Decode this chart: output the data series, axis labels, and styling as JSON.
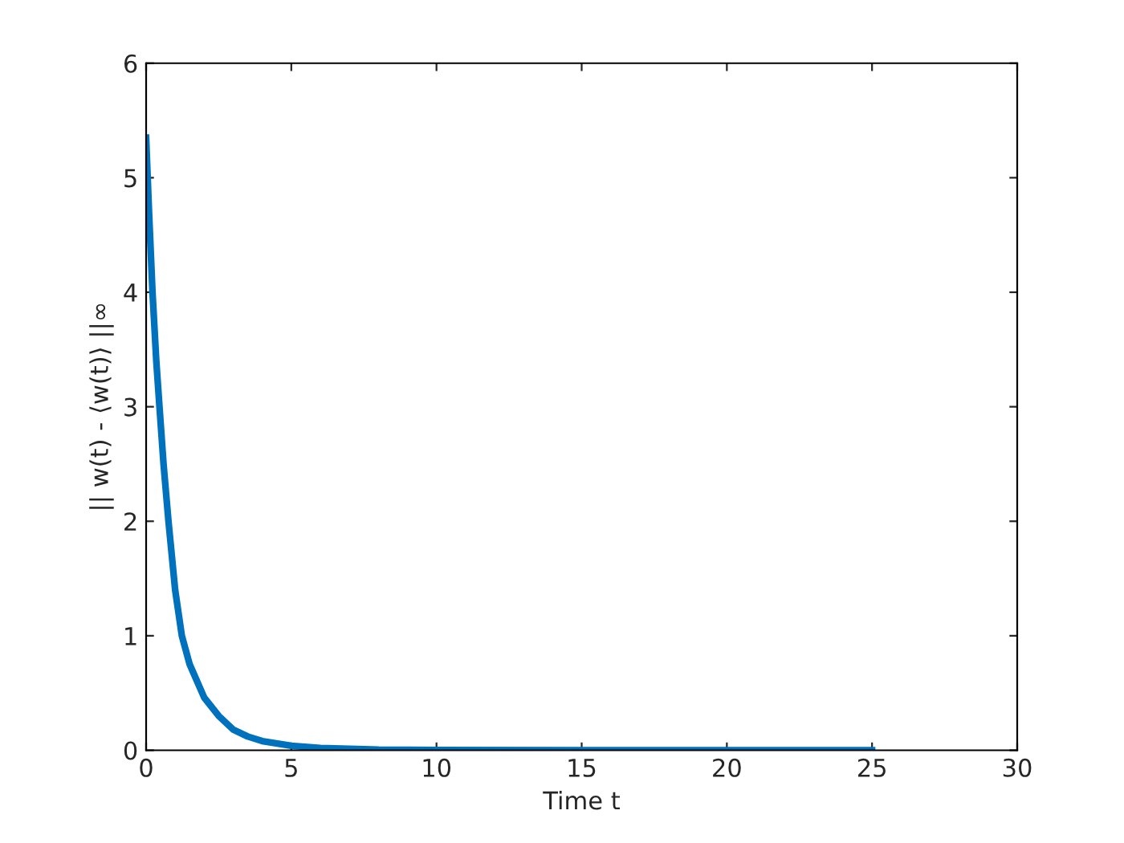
{
  "chart_data": {
    "type": "line",
    "xlabel": "Time t",
    "ylabel": "|| w(t) - ⟨w(t)⟩ ||∞",
    "x": [
      0,
      0.1,
      0.22,
      0.35,
      0.46,
      0.6,
      0.77,
      1.0,
      1.23,
      1.5,
      2,
      2.5,
      3,
      3.5,
      4,
      5,
      6,
      8,
      10,
      15,
      20,
      25
    ],
    "series": [
      {
        "color": "#0072bd",
        "values": [
          5.35,
          4.7,
          4.0,
          3.4,
          3.0,
          2.5,
          2.0,
          1.4,
          1.0,
          0.75,
          0.46,
          0.3,
          0.18,
          0.12,
          0.08,
          0.04,
          0.02,
          0.005,
          0.002,
          0,
          0,
          0
        ]
      }
    ],
    "xlim": [
      0,
      30
    ],
    "xticks": [
      0,
      5,
      10,
      15,
      20,
      25,
      30
    ],
    "ylim": [
      0,
      6
    ],
    "yticks": [
      0,
      1,
      2,
      3,
      4,
      5,
      6
    ],
    "grid": false,
    "legend": false
  }
}
